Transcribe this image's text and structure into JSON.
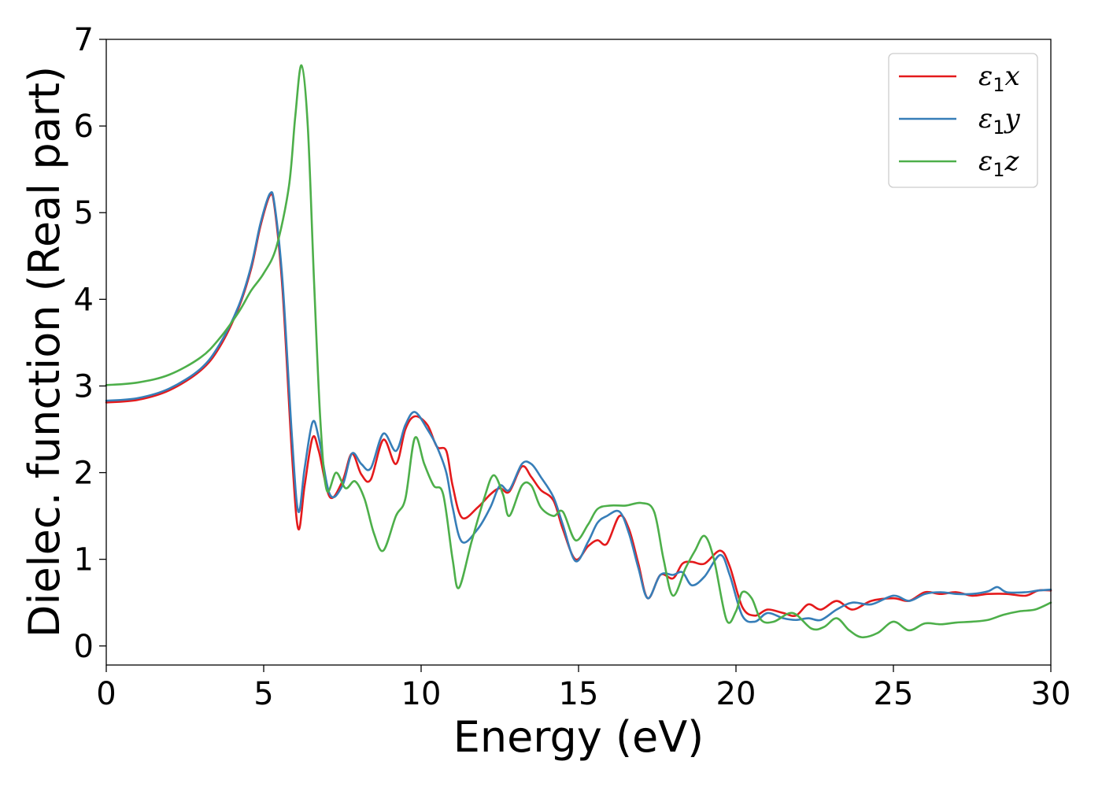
{
  "chart_data": {
    "type": "line",
    "title": "",
    "xlabel": "Energy (eV)",
    "ylabel": "Dielec. function (Real part)",
    "xlim": [
      0,
      30
    ],
    "ylim": [
      -0.22,
      7.0
    ],
    "xticks": [
      "0",
      "5",
      "10",
      "15",
      "20",
      "25",
      "30"
    ],
    "yticks": [
      "0",
      "1",
      "2",
      "3",
      "4",
      "5",
      "6",
      "7"
    ],
    "grid": false,
    "legend_position": "top-right",
    "series": [
      {
        "name": "ε1x",
        "legend_symbol": "ε",
        "legend_sub": "1",
        "legend_var": "x",
        "color": "#e41a1c",
        "points": [
          [
            0,
            2.81
          ],
          [
            1,
            2.84
          ],
          [
            2,
            2.95
          ],
          [
            3,
            3.18
          ],
          [
            3.6,
            3.45
          ],
          [
            4.2,
            3.9
          ],
          [
            4.6,
            4.35
          ],
          [
            4.9,
            4.85
          ],
          [
            5.2,
            5.2
          ],
          [
            5.35,
            5.05
          ],
          [
            5.6,
            4.1
          ],
          [
            5.9,
            2.2
          ],
          [
            6.1,
            1.35
          ],
          [
            6.3,
            1.85
          ],
          [
            6.55,
            2.4
          ],
          [
            6.75,
            2.25
          ],
          [
            7.1,
            1.72
          ],
          [
            7.5,
            1.9
          ],
          [
            7.8,
            2.22
          ],
          [
            8.1,
            1.98
          ],
          [
            8.4,
            1.92
          ],
          [
            8.8,
            2.38
          ],
          [
            9.2,
            2.1
          ],
          [
            9.5,
            2.5
          ],
          [
            9.8,
            2.65
          ],
          [
            10.2,
            2.55
          ],
          [
            10.5,
            2.3
          ],
          [
            10.8,
            2.25
          ],
          [
            11.0,
            1.85
          ],
          [
            11.3,
            1.48
          ],
          [
            11.8,
            1.6
          ],
          [
            12.2,
            1.75
          ],
          [
            12.5,
            1.82
          ],
          [
            12.8,
            1.78
          ],
          [
            13.2,
            2.07
          ],
          [
            13.5,
            1.95
          ],
          [
            13.8,
            1.8
          ],
          [
            14.2,
            1.68
          ],
          [
            14.5,
            1.35
          ],
          [
            14.9,
            1.0
          ],
          [
            15.3,
            1.15
          ],
          [
            15.6,
            1.22
          ],
          [
            15.9,
            1.18
          ],
          [
            16.3,
            1.5
          ],
          [
            16.6,
            1.35
          ],
          [
            16.9,
            0.95
          ],
          [
            17.2,
            0.55
          ],
          [
            17.6,
            0.82
          ],
          [
            18.0,
            0.78
          ],
          [
            18.3,
            0.95
          ],
          [
            18.6,
            0.97
          ],
          [
            19.0,
            0.95
          ],
          [
            19.5,
            1.1
          ],
          [
            19.8,
            0.92
          ],
          [
            20.2,
            0.45
          ],
          [
            20.6,
            0.35
          ],
          [
            21.0,
            0.42
          ],
          [
            21.5,
            0.38
          ],
          [
            21.9,
            0.35
          ],
          [
            22.3,
            0.48
          ],
          [
            22.7,
            0.42
          ],
          [
            23.2,
            0.52
          ],
          [
            23.7,
            0.42
          ],
          [
            24.3,
            0.52
          ],
          [
            25.0,
            0.55
          ],
          [
            25.5,
            0.52
          ],
          [
            26.0,
            0.62
          ],
          [
            26.5,
            0.6
          ],
          [
            27.0,
            0.62
          ],
          [
            27.5,
            0.58
          ],
          [
            28.0,
            0.6
          ],
          [
            28.6,
            0.6
          ],
          [
            29.2,
            0.58
          ],
          [
            29.6,
            0.64
          ],
          [
            30.0,
            0.64
          ]
        ]
      },
      {
        "name": "ε1y",
        "legend_symbol": "ε",
        "legend_sub": "1",
        "legend_var": "y",
        "color": "#377eb8",
        "points": [
          [
            0,
            2.83
          ],
          [
            1,
            2.86
          ],
          [
            2,
            2.97
          ],
          [
            3,
            3.2
          ],
          [
            3.6,
            3.48
          ],
          [
            4.2,
            3.92
          ],
          [
            4.6,
            4.38
          ],
          [
            4.9,
            4.88
          ],
          [
            5.2,
            5.22
          ],
          [
            5.35,
            5.08
          ],
          [
            5.6,
            4.2
          ],
          [
            5.9,
            2.4
          ],
          [
            6.1,
            1.55
          ],
          [
            6.3,
            2.05
          ],
          [
            6.55,
            2.58
          ],
          [
            6.75,
            2.4
          ],
          [
            7.1,
            1.75
          ],
          [
            7.5,
            1.85
          ],
          [
            7.8,
            2.22
          ],
          [
            8.1,
            2.1
          ],
          [
            8.4,
            2.05
          ],
          [
            8.8,
            2.45
          ],
          [
            9.2,
            2.25
          ],
          [
            9.5,
            2.55
          ],
          [
            9.8,
            2.7
          ],
          [
            10.2,
            2.5
          ],
          [
            10.5,
            2.3
          ],
          [
            10.8,
            2.0
          ],
          [
            11.0,
            1.6
          ],
          [
            11.3,
            1.2
          ],
          [
            11.8,
            1.35
          ],
          [
            12.2,
            1.6
          ],
          [
            12.5,
            1.85
          ],
          [
            12.8,
            1.8
          ],
          [
            13.2,
            2.1
          ],
          [
            13.5,
            2.1
          ],
          [
            13.8,
            1.95
          ],
          [
            14.2,
            1.72
          ],
          [
            14.5,
            1.4
          ],
          [
            14.9,
            0.98
          ],
          [
            15.3,
            1.2
          ],
          [
            15.6,
            1.42
          ],
          [
            15.9,
            1.5
          ],
          [
            16.3,
            1.55
          ],
          [
            16.6,
            1.3
          ],
          [
            16.9,
            0.9
          ],
          [
            17.2,
            0.55
          ],
          [
            17.6,
            0.82
          ],
          [
            18.0,
            0.82
          ],
          [
            18.3,
            0.85
          ],
          [
            18.6,
            0.7
          ],
          [
            19.0,
            0.8
          ],
          [
            19.5,
            1.05
          ],
          [
            19.8,
            0.82
          ],
          [
            20.2,
            0.35
          ],
          [
            20.6,
            0.28
          ],
          [
            21.0,
            0.38
          ],
          [
            21.5,
            0.32
          ],
          [
            21.9,
            0.3
          ],
          [
            22.3,
            0.32
          ],
          [
            22.7,
            0.3
          ],
          [
            23.2,
            0.42
          ],
          [
            23.7,
            0.5
          ],
          [
            24.3,
            0.48
          ],
          [
            25.0,
            0.58
          ],
          [
            25.5,
            0.52
          ],
          [
            26.0,
            0.6
          ],
          [
            26.5,
            0.62
          ],
          [
            27.0,
            0.6
          ],
          [
            27.5,
            0.6
          ],
          [
            28.0,
            0.63
          ],
          [
            28.3,
            0.68
          ],
          [
            28.6,
            0.62
          ],
          [
            29.2,
            0.62
          ],
          [
            29.6,
            0.64
          ],
          [
            30.0,
            0.65
          ]
        ]
      },
      {
        "name": "ε1z",
        "legend_symbol": "ε",
        "legend_sub": "1",
        "legend_var": "z",
        "color": "#4daf4a",
        "points": [
          [
            0,
            3.01
          ],
          [
            1,
            3.04
          ],
          [
            2,
            3.13
          ],
          [
            3,
            3.33
          ],
          [
            3.6,
            3.55
          ],
          [
            4.2,
            3.85
          ],
          [
            4.6,
            4.1
          ],
          [
            5.0,
            4.3
          ],
          [
            5.4,
            4.6
          ],
          [
            5.8,
            5.3
          ],
          [
            6.0,
            6.1
          ],
          [
            6.2,
            6.7
          ],
          [
            6.4,
            6.0
          ],
          [
            6.6,
            4.2
          ],
          [
            6.8,
            2.6
          ],
          [
            7.0,
            1.8
          ],
          [
            7.3,
            2.0
          ],
          [
            7.6,
            1.82
          ],
          [
            7.9,
            1.9
          ],
          [
            8.2,
            1.7
          ],
          [
            8.5,
            1.3
          ],
          [
            8.8,
            1.1
          ],
          [
            9.2,
            1.5
          ],
          [
            9.5,
            1.7
          ],
          [
            9.8,
            2.4
          ],
          [
            10.1,
            2.1
          ],
          [
            10.4,
            1.85
          ],
          [
            10.7,
            1.75
          ],
          [
            11.0,
            1.0
          ],
          [
            11.2,
            0.67
          ],
          [
            11.6,
            1.2
          ],
          [
            12.0,
            1.7
          ],
          [
            12.3,
            1.97
          ],
          [
            12.6,
            1.75
          ],
          [
            12.8,
            1.5
          ],
          [
            13.2,
            1.85
          ],
          [
            13.5,
            1.85
          ],
          [
            13.8,
            1.6
          ],
          [
            14.2,
            1.5
          ],
          [
            14.5,
            1.55
          ],
          [
            14.9,
            1.22
          ],
          [
            15.3,
            1.4
          ],
          [
            15.6,
            1.58
          ],
          [
            16.0,
            1.62
          ],
          [
            16.5,
            1.62
          ],
          [
            17.0,
            1.65
          ],
          [
            17.4,
            1.55
          ],
          [
            17.7,
            1.0
          ],
          [
            18.0,
            0.58
          ],
          [
            18.4,
            0.9
          ],
          [
            18.7,
            1.1
          ],
          [
            19.0,
            1.27
          ],
          [
            19.3,
            1.0
          ],
          [
            19.7,
            0.3
          ],
          [
            20.0,
            0.4
          ],
          [
            20.2,
            0.62
          ],
          [
            20.5,
            0.55
          ],
          [
            20.8,
            0.3
          ],
          [
            21.2,
            0.28
          ],
          [
            21.8,
            0.38
          ],
          [
            22.4,
            0.2
          ],
          [
            22.8,
            0.22
          ],
          [
            23.2,
            0.32
          ],
          [
            23.6,
            0.18
          ],
          [
            24.0,
            0.1
          ],
          [
            24.5,
            0.15
          ],
          [
            25.0,
            0.28
          ],
          [
            25.5,
            0.18
          ],
          [
            26.0,
            0.26
          ],
          [
            26.5,
            0.25
          ],
          [
            27.0,
            0.27
          ],
          [
            27.5,
            0.28
          ],
          [
            28.0,
            0.3
          ],
          [
            28.5,
            0.36
          ],
          [
            29.0,
            0.4
          ],
          [
            29.5,
            0.42
          ],
          [
            30.0,
            0.5
          ]
        ]
      }
    ]
  }
}
